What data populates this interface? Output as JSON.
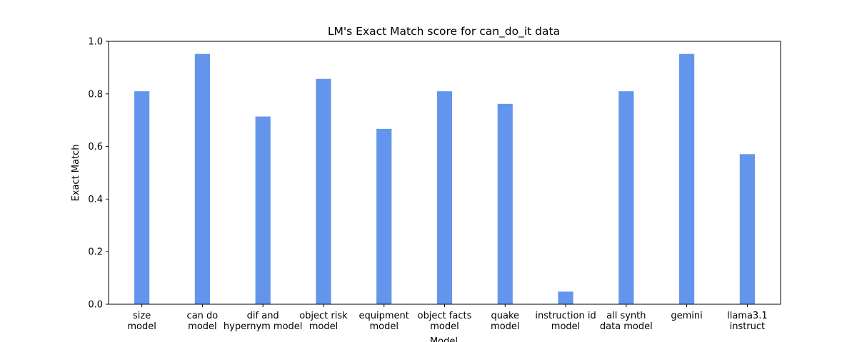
{
  "chart_data": {
    "type": "bar",
    "title": "LM's Exact Match score for can_do_it data",
    "xlabel": "Model",
    "ylabel": "Exact Match",
    "ylim": [
      0,
      1.0
    ],
    "yticks": [
      "0.0",
      "0.2",
      "0.4",
      "0.6",
      "0.8",
      "1.0"
    ],
    "grid": false,
    "bar_color": "#6495ED",
    "categories": [
      [
        "size",
        "model"
      ],
      [
        "can do",
        "model"
      ],
      [
        "dif and",
        "hypernym model"
      ],
      [
        "object risk",
        "model"
      ],
      [
        "equipment",
        "model"
      ],
      [
        "object facts",
        "model"
      ],
      [
        "quake",
        "model"
      ],
      [
        "instruction id",
        "model"
      ],
      [
        "all synth",
        "data model"
      ],
      [
        "gemini"
      ],
      [
        "llama3.1",
        "instruct"
      ]
    ],
    "values": [
      0.81,
      0.952,
      0.714,
      0.857,
      0.667,
      0.81,
      0.762,
      0.048,
      0.81,
      0.952,
      0.571
    ]
  }
}
